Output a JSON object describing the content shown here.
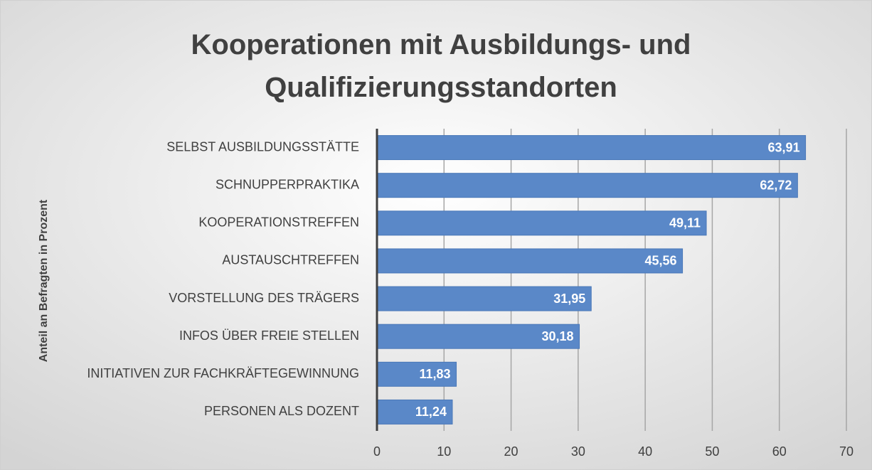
{
  "chart_data": {
    "type": "hbar",
    "title": "Kooperationen mit Ausbildungs- und Qualifizierungsstandorten",
    "y_label": "Anteil an Befragten in Prozent",
    "categories": [
      "SELBST AUSBILDUNGSSTÄTTE",
      "SCHNUPPERPRAKTIKA",
      "KOOPERATIONSTREFFEN",
      "AUSTAUSCHTREFFEN",
      "VORSTELLUNG DES TRÄGERS",
      "INFOS ÜBER FREIE STELLEN",
      "INITIATIVEN ZUR FACHKRÄFTEGEWINNUNG",
      "PERSONEN ALS DOZENT"
    ],
    "values": [
      63.91,
      62.72,
      49.11,
      45.56,
      31.95,
      30.18,
      11.83,
      11.24
    ],
    "value_labels": [
      "63,91",
      "62,72",
      "49,11",
      "45,56",
      "31,95",
      "30,18",
      "11,83",
      "11,24"
    ],
    "color": "#5a88c8",
    "xlim": [
      0,
      70
    ],
    "xticks": [
      0,
      10,
      20,
      30,
      40,
      50,
      60,
      70
    ],
    "grid": true
  }
}
